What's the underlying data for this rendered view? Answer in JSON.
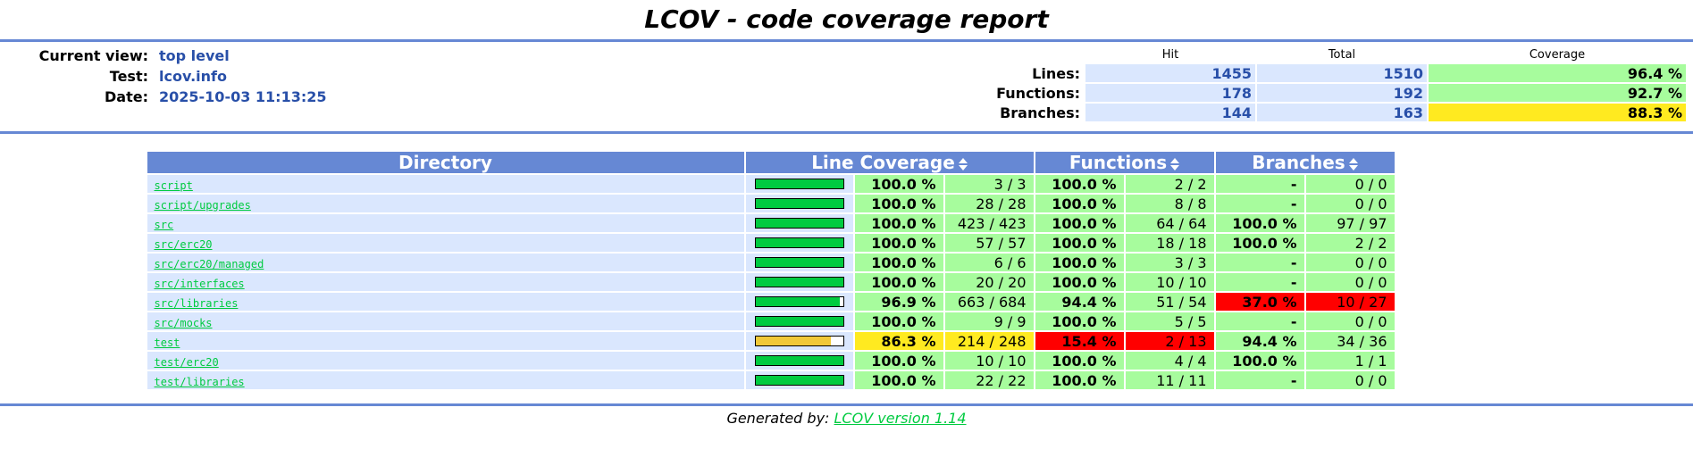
{
  "title": "LCOV - code coverage report",
  "header": {
    "info": [
      {
        "label": "Current view:",
        "value": "top level"
      },
      {
        "label": "Test:",
        "value": "lcov.info"
      },
      {
        "label": "Date:",
        "value": "2025-10-03 11:13:25"
      }
    ],
    "summary_headers": {
      "hit": "Hit",
      "total": "Total",
      "coverage": "Coverage"
    },
    "summary": [
      {
        "label": "Lines:",
        "hit": "1455",
        "total": "1510",
        "coverage": "96.4 %",
        "level": "hi"
      },
      {
        "label": "Functions:",
        "hit": "178",
        "total": "192",
        "coverage": "92.7 %",
        "level": "hi"
      },
      {
        "label": "Branches:",
        "hit": "144",
        "total": "163",
        "coverage": "88.3 %",
        "level": "med"
      }
    ]
  },
  "table": {
    "headers": {
      "directory": "Directory",
      "line_coverage": "Line Coverage",
      "functions": "Functions",
      "branches": "Branches"
    },
    "rows": [
      {
        "dir": "script",
        "line_fraction": 1.0,
        "line_pct": "100.0 %",
        "line_cnt": "3 / 3",
        "line_level": "hi",
        "fn_pct": "100.0 %",
        "fn_cnt": "2 / 2",
        "fn_level": "hi",
        "br_pct": "-",
        "br_cnt": "0 / 0",
        "br_level": "hi"
      },
      {
        "dir": "script/upgrades",
        "line_fraction": 1.0,
        "line_pct": "100.0 %",
        "line_cnt": "28 / 28",
        "line_level": "hi",
        "fn_pct": "100.0 %",
        "fn_cnt": "8 / 8",
        "fn_level": "hi",
        "br_pct": "-",
        "br_cnt": "0 / 0",
        "br_level": "hi"
      },
      {
        "dir": "src",
        "line_fraction": 1.0,
        "line_pct": "100.0 %",
        "line_cnt": "423 / 423",
        "line_level": "hi",
        "fn_pct": "100.0 %",
        "fn_cnt": "64 / 64",
        "fn_level": "hi",
        "br_pct": "100.0 %",
        "br_cnt": "97 / 97",
        "br_level": "hi"
      },
      {
        "dir": "src/erc20",
        "line_fraction": 1.0,
        "line_pct": "100.0 %",
        "line_cnt": "57 / 57",
        "line_level": "hi",
        "fn_pct": "100.0 %",
        "fn_cnt": "18 / 18",
        "fn_level": "hi",
        "br_pct": "100.0 %",
        "br_cnt": "2 / 2",
        "br_level": "hi"
      },
      {
        "dir": "src/erc20/managed",
        "line_fraction": 1.0,
        "line_pct": "100.0 %",
        "line_cnt": "6 / 6",
        "line_level": "hi",
        "fn_pct": "100.0 %",
        "fn_cnt": "3 / 3",
        "fn_level": "hi",
        "br_pct": "-",
        "br_cnt": "0 / 0",
        "br_level": "hi"
      },
      {
        "dir": "src/interfaces",
        "line_fraction": 1.0,
        "line_pct": "100.0 %",
        "line_cnt": "20 / 20",
        "line_level": "hi",
        "fn_pct": "100.0 %",
        "fn_cnt": "10 / 10",
        "fn_level": "hi",
        "br_pct": "-",
        "br_cnt": "0 / 0",
        "br_level": "hi"
      },
      {
        "dir": "src/libraries",
        "line_fraction": 0.969,
        "line_pct": "96.9 %",
        "line_cnt": "663 / 684",
        "line_level": "hi",
        "fn_pct": "94.4 %",
        "fn_cnt": "51 / 54",
        "fn_level": "hi",
        "br_pct": "37.0 %",
        "br_cnt": "10 / 27",
        "br_level": "lo"
      },
      {
        "dir": "src/mocks",
        "line_fraction": 1.0,
        "line_pct": "100.0 %",
        "line_cnt": "9 / 9",
        "line_level": "hi",
        "fn_pct": "100.0 %",
        "fn_cnt": "5 / 5",
        "fn_level": "hi",
        "br_pct": "-",
        "br_cnt": "0 / 0",
        "br_level": "hi"
      },
      {
        "dir": "test",
        "line_fraction": 0.863,
        "line_pct": "86.3 %",
        "line_cnt": "214 / 248",
        "line_level": "med",
        "fn_pct": "15.4 %",
        "fn_cnt": "2 / 13",
        "fn_level": "lo",
        "br_pct": "94.4 %",
        "br_cnt": "34 / 36",
        "br_level": "hi"
      },
      {
        "dir": "test/erc20",
        "line_fraction": 1.0,
        "line_pct": "100.0 %",
        "line_cnt": "10 / 10",
        "line_level": "hi",
        "fn_pct": "100.0 %",
        "fn_cnt": "4 / 4",
        "fn_level": "hi",
        "br_pct": "100.0 %",
        "br_cnt": "1 / 1",
        "br_level": "hi"
      },
      {
        "dir": "test/libraries",
        "line_fraction": 1.0,
        "line_pct": "100.0 %",
        "line_cnt": "22 / 22",
        "line_level": "hi",
        "fn_pct": "100.0 %",
        "fn_cnt": "11 / 11",
        "fn_level": "hi",
        "br_pct": "-",
        "br_cnt": "0 / 0",
        "br_level": "hi"
      }
    ]
  },
  "colors": {
    "hi": "#a7fc9d",
    "med": "#ffea20",
    "lo": "#ff0000",
    "bar_hi": "#00cb40",
    "bar_med": "#f0c838",
    "accent": "#6688d4"
  },
  "footer": {
    "prefix": "Generated by: ",
    "link": "LCOV version 1.14"
  }
}
